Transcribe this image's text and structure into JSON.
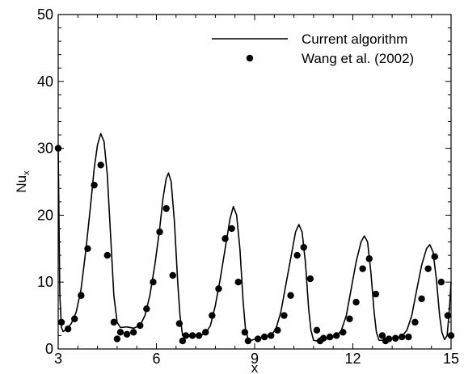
{
  "chart_data": {
    "type": "line",
    "xlabel": "x",
    "ylabel": "Nu",
    "ylabel_subscript": "x",
    "xlim": [
      3,
      15
    ],
    "ylim": [
      0,
      50
    ],
    "x_ticks": [
      3,
      6,
      9,
      12,
      15
    ],
    "y_ticks": [
      0,
      10,
      20,
      30,
      40,
      50
    ],
    "grid": false,
    "legend_position": "top-right",
    "series": [
      {
        "name": "Current algorithm",
        "style": "line",
        "color": "#000000",
        "points": [
          [
            3.0,
            30.0
          ],
          [
            3.05,
            8.0
          ],
          [
            3.1,
            3.2
          ],
          [
            3.15,
            2.6
          ],
          [
            3.25,
            2.9
          ],
          [
            3.4,
            3.8
          ],
          [
            3.55,
            5.5
          ],
          [
            3.7,
            9.0
          ],
          [
            3.85,
            15.0
          ],
          [
            4.0,
            22.0
          ],
          [
            4.1,
            27.0
          ],
          [
            4.2,
            30.5
          ],
          [
            4.3,
            32.2
          ],
          [
            4.4,
            31.0
          ],
          [
            4.5,
            26.0
          ],
          [
            4.6,
            17.0
          ],
          [
            4.7,
            8.0
          ],
          [
            4.8,
            4.0
          ],
          [
            4.9,
            3.2
          ],
          [
            5.1,
            3.3
          ],
          [
            5.3,
            3.1
          ],
          [
            5.5,
            3.5
          ],
          [
            5.65,
            5.0
          ],
          [
            5.8,
            8.0
          ],
          [
            5.95,
            12.5
          ],
          [
            6.1,
            18.0
          ],
          [
            6.2,
            22.5
          ],
          [
            6.3,
            25.5
          ],
          [
            6.37,
            26.3
          ],
          [
            6.45,
            25.0
          ],
          [
            6.55,
            19.0
          ],
          [
            6.65,
            10.0
          ],
          [
            6.72,
            5.0
          ],
          [
            6.8,
            2.0
          ],
          [
            6.9,
            1.8
          ],
          [
            7.1,
            2.1
          ],
          [
            7.3,
            2.0
          ],
          [
            7.5,
            2.3
          ],
          [
            7.65,
            3.5
          ],
          [
            7.8,
            6.5
          ],
          [
            7.95,
            10.5
          ],
          [
            8.1,
            15.0
          ],
          [
            8.25,
            19.5
          ],
          [
            8.35,
            21.3
          ],
          [
            8.45,
            20.0
          ],
          [
            8.55,
            15.0
          ],
          [
            8.65,
            7.0
          ],
          [
            8.72,
            3.0
          ],
          [
            8.8,
            1.5
          ],
          [
            8.9,
            1.3
          ],
          [
            9.1,
            1.6
          ],
          [
            9.3,
            1.7
          ],
          [
            9.5,
            2.0
          ],
          [
            9.65,
            3.0
          ],
          [
            9.8,
            5.5
          ],
          [
            9.95,
            9.5
          ],
          [
            10.1,
            13.5
          ],
          [
            10.25,
            17.5
          ],
          [
            10.35,
            18.6
          ],
          [
            10.45,
            17.5
          ],
          [
            10.55,
            13.0
          ],
          [
            10.65,
            6.0
          ],
          [
            10.72,
            2.8
          ],
          [
            10.8,
            1.3
          ],
          [
            10.9,
            1.2
          ],
          [
            11.1,
            1.4
          ],
          [
            11.3,
            1.6
          ],
          [
            11.5,
            1.9
          ],
          [
            11.65,
            2.8
          ],
          [
            11.8,
            5.0
          ],
          [
            11.95,
            9.0
          ],
          [
            12.1,
            13.0
          ],
          [
            12.25,
            16.0
          ],
          [
            12.35,
            16.9
          ],
          [
            12.45,
            16.0
          ],
          [
            12.55,
            11.5
          ],
          [
            12.65,
            5.5
          ],
          [
            12.72,
            2.5
          ],
          [
            12.8,
            1.3
          ],
          [
            12.9,
            1.3
          ],
          [
            13.1,
            1.5
          ],
          [
            13.3,
            1.6
          ],
          [
            13.5,
            1.9
          ],
          [
            13.65,
            2.8
          ],
          [
            13.8,
            5.0
          ],
          [
            13.95,
            8.8
          ],
          [
            14.1,
            12.5
          ],
          [
            14.25,
            15.0
          ],
          [
            14.35,
            15.6
          ],
          [
            14.45,
            14.5
          ],
          [
            14.55,
            10.5
          ],
          [
            14.65,
            5.0
          ],
          [
            14.72,
            2.5
          ],
          [
            14.8,
            1.4
          ],
          [
            14.88,
            2.0
          ],
          [
            14.95,
            6.0
          ],
          [
            15.0,
            10.0
          ]
        ]
      },
      {
        "name": "Wang et al. (2002)",
        "style": "markers",
        "color": "#000000",
        "points": [
          [
            3.0,
            30.0
          ],
          [
            3.1,
            4.0
          ],
          [
            3.3,
            3.0
          ],
          [
            3.5,
            4.5
          ],
          [
            3.7,
            8.0
          ],
          [
            3.9,
            15.0
          ],
          [
            4.1,
            24.5
          ],
          [
            4.3,
            27.5
          ],
          [
            4.5,
            14.0
          ],
          [
            4.7,
            4.0
          ],
          [
            4.8,
            1.5
          ],
          [
            4.9,
            2.5
          ],
          [
            5.1,
            2.2
          ],
          [
            5.3,
            2.5
          ],
          [
            5.5,
            3.5
          ],
          [
            5.7,
            6.0
          ],
          [
            5.9,
            10.0
          ],
          [
            6.1,
            17.5
          ],
          [
            6.3,
            21.0
          ],
          [
            6.5,
            11.0
          ],
          [
            6.7,
            3.8
          ],
          [
            6.8,
            1.2
          ],
          [
            6.9,
            2.0
          ],
          [
            7.1,
            2.0
          ],
          [
            7.3,
            2.0
          ],
          [
            7.5,
            2.5
          ],
          [
            7.7,
            5.0
          ],
          [
            7.9,
            9.0
          ],
          [
            8.1,
            16.5
          ],
          [
            8.3,
            18.0
          ],
          [
            8.5,
            10.0
          ],
          [
            8.7,
            2.5
          ],
          [
            8.8,
            1.2
          ],
          [
            9.1,
            1.5
          ],
          [
            9.3,
            1.8
          ],
          [
            9.5,
            2.0
          ],
          [
            9.7,
            2.8
          ],
          [
            9.9,
            5.0
          ],
          [
            10.1,
            8.0
          ],
          [
            10.3,
            14.0
          ],
          [
            10.5,
            15.2
          ],
          [
            10.7,
            10.5
          ],
          [
            10.9,
            2.8
          ],
          [
            11.0,
            1.2
          ],
          [
            11.1,
            1.6
          ],
          [
            11.3,
            1.8
          ],
          [
            11.5,
            2.0
          ],
          [
            11.7,
            2.5
          ],
          [
            11.9,
            4.5
          ],
          [
            12.1,
            7.0
          ],
          [
            12.3,
            12.0
          ],
          [
            12.5,
            13.5
          ],
          [
            12.7,
            8.2
          ],
          [
            12.9,
            2.0
          ],
          [
            13.0,
            1.2
          ],
          [
            13.1,
            1.5
          ],
          [
            13.3,
            1.6
          ],
          [
            13.5,
            1.8
          ],
          [
            13.7,
            1.8
          ],
          [
            13.9,
            4.0
          ],
          [
            14.1,
            7.5
          ],
          [
            14.3,
            12.0
          ],
          [
            14.5,
            13.8
          ],
          [
            14.7,
            10.0
          ],
          [
            14.9,
            5.0
          ],
          [
            15.0,
            2.0
          ]
        ]
      }
    ]
  }
}
